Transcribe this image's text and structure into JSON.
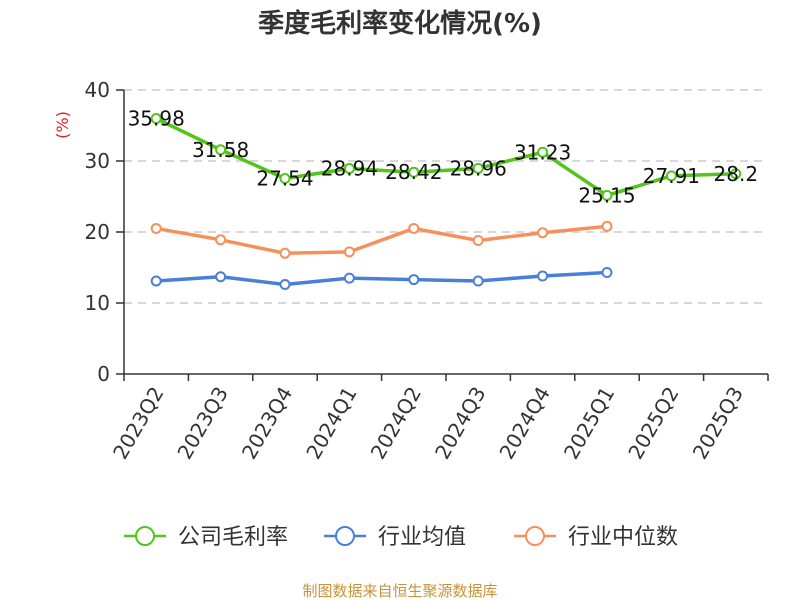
{
  "chart_data": {
    "type": "line",
    "title": "季度毛利率变化情况(%)",
    "ylabel": "(%)",
    "ylim": [
      0,
      40
    ],
    "yticks": [
      0,
      10,
      20,
      30,
      40
    ],
    "categories": [
      "2023Q2",
      "2023Q3",
      "2023Q4",
      "2024Q1",
      "2024Q2",
      "2024Q3",
      "2024Q4",
      "2025Q1",
      "2025Q2",
      "2025Q3"
    ],
    "grid": true,
    "legend_position": "bottom",
    "series": [
      {
        "name": "公司毛利率",
        "color": "#52c41a",
        "values": [
          35.98,
          31.58,
          27.54,
          28.94,
          28.42,
          28.96,
          31.23,
          25.15,
          27.91,
          28.2
        ],
        "labels": [
          "35.98",
          "31.58",
          "27.54",
          "28.94",
          "28.42",
          "28.96",
          "31.23",
          "25.15",
          "27.91",
          "28.2"
        ]
      },
      {
        "name": "行业均值",
        "color": "#4a7fd8",
        "values": [
          13.1,
          13.7,
          12.6,
          13.5,
          13.3,
          13.1,
          13.8,
          14.3,
          null,
          null
        ]
      },
      {
        "name": "行业中位数",
        "color": "#f5905a",
        "values": [
          20.5,
          18.9,
          17.0,
          17.2,
          20.5,
          18.8,
          19.9,
          20.8,
          null,
          null
        ]
      }
    ]
  },
  "colors": {
    "title": "#333333",
    "axis": "#333333",
    "grid": "#cccccc",
    "ylabel": "#e02020",
    "source": "#c8923c"
  },
  "source": "制图数据来自恒生聚源数据库"
}
